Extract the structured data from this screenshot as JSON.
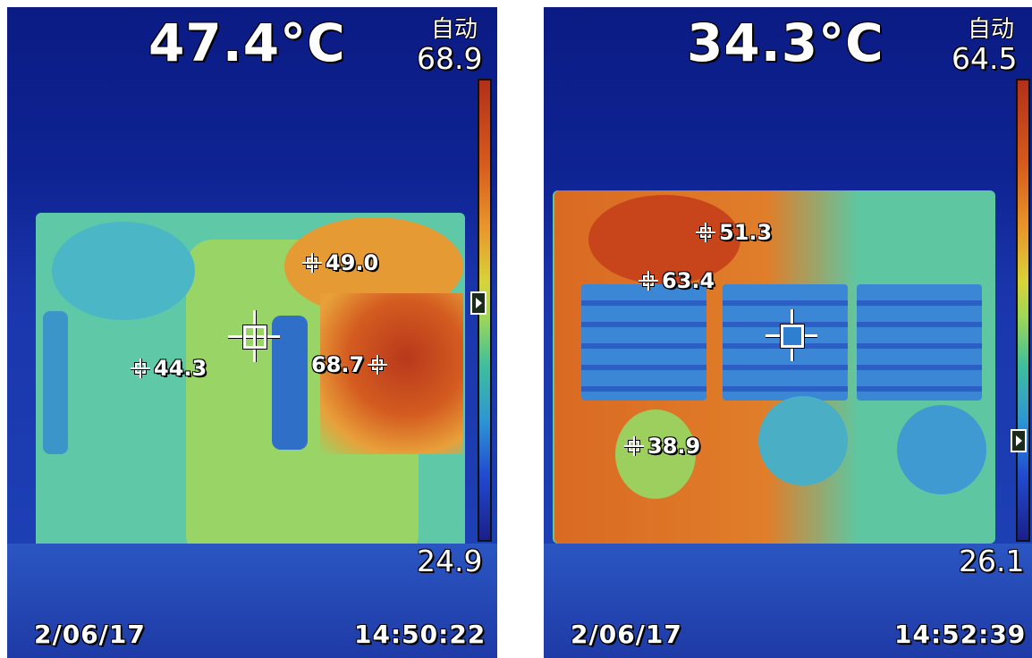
{
  "panels": [
    {
      "center_temp": "47.4°C",
      "mode": "自动",
      "scale_max": "68.9",
      "scale_min": "24.9",
      "date": "2/06/17",
      "time": "14:50:22",
      "spots": [
        "49.0",
        "44.3",
        "68.7"
      ]
    },
    {
      "center_temp": "34.3°C",
      "mode": "自动",
      "scale_max": "64.5",
      "scale_min": "26.1",
      "date": "2/06/17",
      "time": "14:52:39",
      "spots": [
        "51.3",
        "63.4",
        "38.9"
      ]
    }
  ],
  "colors": {
    "background": "#0a1e8a",
    "hot": "#d65a1c",
    "warm": "#e9a33a",
    "mid": "#9ad65a",
    "cool": "#3fbf9c",
    "cold": "#2d6fd4"
  }
}
